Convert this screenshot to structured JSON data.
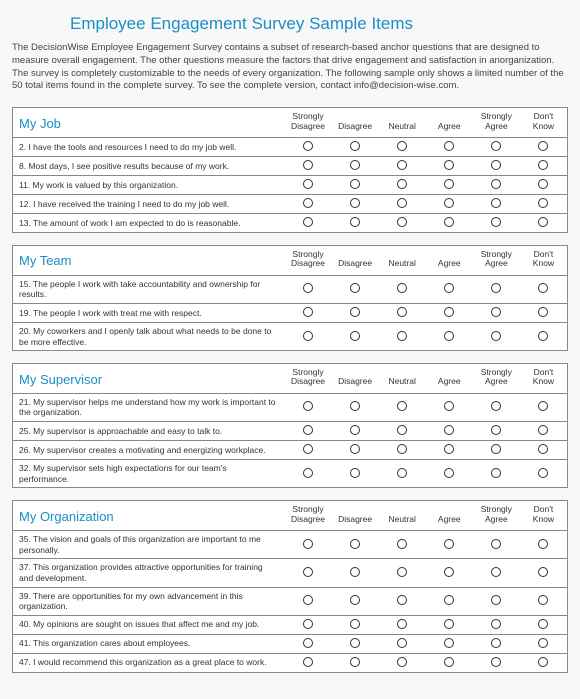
{
  "title": "Employee Engagement Survey Sample Items",
  "intro": "The DecisionWise Employee Engagement Survey contains a subset of research-based anchor questions that are designed to measure overall engagement. The other questions measure the factors that drive engagement and satisfaction in anorganization. The survey is completely customizable to the needs of every organization. The following sample only shows a limited number of the 50 total items found in the complete survey. To see the complete version, contact info@decision-wise.com.",
  "scale": {
    "h0": "Strongly Disagree",
    "h1": "Disagree",
    "h2": "Neutral",
    "h3": "Agree",
    "h4": "Strongly Agree",
    "h5": "Don't Know"
  },
  "sections": [
    {
      "title": "My Job",
      "items": [
        "2. I have the tools and resources I need to do my job well.",
        "8. Most days, I see positive results because of my work.",
        "11. My work is valued by this organization.",
        "12. I have received the training I need to do my job well.",
        "13. The amount of work I am expected to do is reasonable."
      ]
    },
    {
      "title": "My Team",
      "items": [
        "15. The people I work with take accountability and ownership for results.",
        "19. The people I work with treat me with respect.",
        "20. My coworkers and I openly talk about what needs to be done to be more effective."
      ]
    },
    {
      "title": "My Supervisor",
      "items": [
        "21. My supervisor helps me understand how my work is important to the organization.",
        "25. My supervisor is approachable and easy to talk to.",
        "26. My supervisor creates a motivating and energizing workplace.",
        "32. My supervisor sets high expectations for our team's performance."
      ]
    },
    {
      "title": "My Organization",
      "items": [
        "35. The vision and goals of this organization are important to me personally.",
        "37. This organization provides attractive opportunities for training and development.",
        "39. There are opportunities for my own advancement in this organization.",
        "40. My opinions are sought on issues that affect me and my job.",
        "41. This organization cares about employees.",
        "47. I would recommend this organization as a great place to work."
      ]
    }
  ],
  "colors": {
    "accent": "#1a8fc4",
    "border": "#888888",
    "text": "#333333",
    "bg": "#f8f8f8"
  }
}
